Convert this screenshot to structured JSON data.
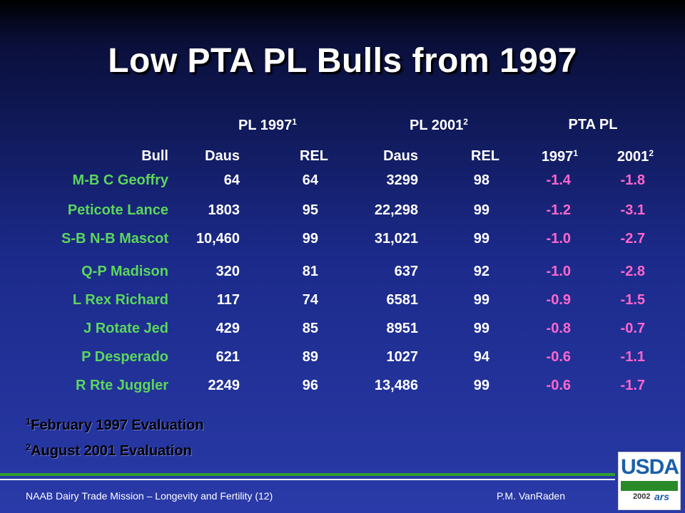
{
  "title": "Low PTA PL Bulls from 1997",
  "groups": [
    {
      "label": "PL 1997",
      "sup": "1"
    },
    {
      "label": "PL 2001",
      "sup": "2"
    },
    {
      "label": "PTA PL",
      "sup": ""
    }
  ],
  "columns": {
    "bull": "Bull",
    "daus97": "Daus",
    "rel97": "REL",
    "daus01": "Daus",
    "rel01": "REL",
    "pta97": "1997",
    "pta97_sup": "1",
    "pta01": "2001",
    "pta01_sup": "2"
  },
  "rows": [
    {
      "bull": "M-B C Geoffry",
      "daus97": "64",
      "rel97": "64",
      "daus01": "3299",
      "rel01": "98",
      "pta97": "-1.4",
      "pta01": "-1.8"
    },
    {
      "bull": "Peticote Lance",
      "daus97": "1803",
      "rel97": "95",
      "daus01": "22,298",
      "rel01": "99",
      "pta97": "-1.2",
      "pta01": "-3.1"
    },
    {
      "bull": "S-B N-B Mascot",
      "daus97": "10,460",
      "rel97": "99",
      "daus01": "31,021",
      "rel01": "99",
      "pta97": "-1.0",
      "pta01": "-2.7"
    },
    {
      "bull": "Q-P Madison",
      "daus97": "320",
      "rel97": "81",
      "daus01": "637",
      "rel01": "92",
      "pta97": "-1.0",
      "pta01": "-2.8"
    },
    {
      "bull": "L Rex Richard",
      "daus97": "117",
      "rel97": "74",
      "daus01": "6581",
      "rel01": "99",
      "pta97": "-0.9",
      "pta01": "-1.5"
    },
    {
      "bull": "J Rotate Jed",
      "daus97": "429",
      "rel97": "85",
      "daus01": "8951",
      "rel01": "99",
      "pta97": "-0.8",
      "pta01": "-0.7"
    },
    {
      "bull": "P Desperado",
      "daus97": "621",
      "rel97": "89",
      "daus01": "1027",
      "rel01": "94",
      "pta97": "-0.6",
      "pta01": "-1.1"
    },
    {
      "bull": "R Rte Juggler",
      "daus97": "2249",
      "rel97": "96",
      "daus01": "13,486",
      "rel01": "99",
      "pta97": "-0.6",
      "pta01": "-1.7"
    }
  ],
  "footnotes": [
    {
      "sup": "1",
      "text": "February 1997 Evaluation"
    },
    {
      "sup": "2",
      "text": "August 2001 Evaluation"
    }
  ],
  "footer": {
    "left": "NAAB Dairy  Trade Mission – Longevity and Fertility (12)",
    "right": "P.M. VanRaden"
  },
  "logo": {
    "text": "USDA",
    "year": "2002",
    "ars": "ars"
  },
  "colors": {
    "bull_names": "#5cd65c",
    "pta_values": "#ff66cc",
    "numbers": "#ffffff"
  }
}
